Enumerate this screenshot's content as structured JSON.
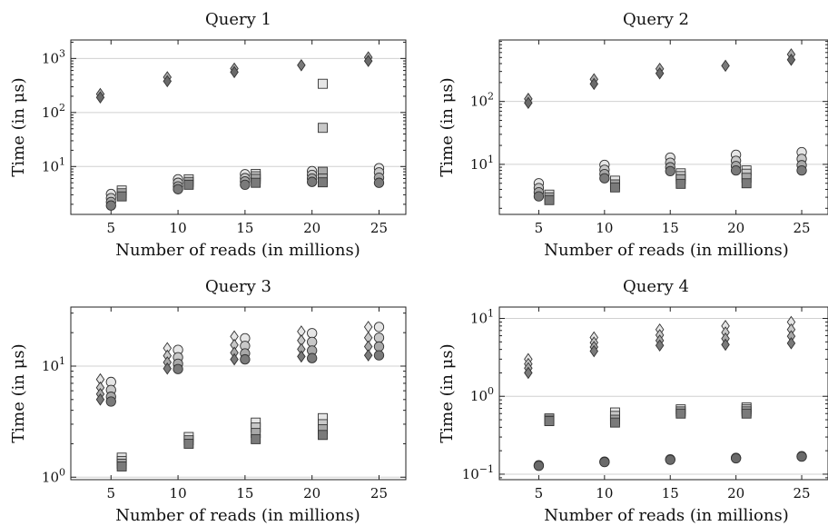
{
  "colors": {
    "shade_light": "#e6e6e6",
    "shade_mid_light": "#c8c8c8",
    "shade_mid": "#a8a8a8",
    "shade_dark": "#7a7a7a",
    "shade_darkest": "#6a6a6a",
    "grid": "#d0d0d0"
  },
  "chart_data": [
    {
      "type": "scatter",
      "title": "Query 1",
      "xlabel": "Number of reads (in millions)",
      "ylabel": "Time (in μs)",
      "yscale": "log",
      "xlim": [
        2,
        27
      ],
      "ylim": [
        1.3,
        2200
      ],
      "xticks": [
        5,
        10,
        15,
        20,
        25
      ],
      "yticks": [
        10,
        100,
        1000
      ],
      "ytick_labels": [
        [
          "10",
          "1"
        ],
        [
          "10",
          "2"
        ],
        [
          "10",
          "3"
        ]
      ],
      "series": [
        {
          "marker": "diamond",
          "x": [
            4.2,
            4.2,
            9.2,
            9.2,
            14.2,
            14.2,
            19.2,
            24.2,
            24.2
          ],
          "y": [
            220,
            190,
            450,
            380,
            650,
            560,
            750,
            1050,
            900
          ]
        },
        {
          "marker": "circle",
          "x": [
            5,
            5,
            5,
            5,
            10,
            10,
            10,
            10,
            15,
            15,
            15,
            15,
            20,
            20,
            20,
            20,
            25,
            25,
            25,
            25
          ],
          "y": [
            3.1,
            2.6,
            2.2,
            1.9,
            5.8,
            5.0,
            4.3,
            3.8,
            7.2,
            6.1,
            5.3,
            4.6,
            8.2,
            7.0,
            6.0,
            5.2,
            9.3,
            7.8,
            6.2,
            5.0
          ]
        },
        {
          "marker": "square",
          "x": [
            5.8,
            5.8,
            5.8,
            10.8,
            10.8,
            10.8,
            15.8,
            15.8,
            15.8,
            15.8,
            20.8,
            20.8,
            20.8,
            20.8,
            20.8
          ],
          "y": [
            3.6,
            3.2,
            2.8,
            5.8,
            5.2,
            4.6,
            7.3,
            6.6,
            5.9,
            5.0,
            340,
            52,
            8.0,
            6.0,
            5.1
          ]
        }
      ]
    },
    {
      "type": "scatter",
      "title": "Query 2",
      "xlabel": "Number of reads (in millions)",
      "ylabel": "Time (in μs)",
      "yscale": "log",
      "xlim": [
        2,
        27
      ],
      "ylim": [
        1.6,
        950
      ],
      "xticks": [
        5,
        10,
        15,
        20,
        25
      ],
      "yticks": [
        10,
        100
      ],
      "ytick_labels": [
        [
          "10",
          "1"
        ],
        [
          "10",
          "2"
        ]
      ],
      "series": [
        {
          "marker": "diamond",
          "x": [
            4.2,
            4.2,
            9.2,
            9.2,
            14.2,
            14.2,
            19.2,
            24.2,
            24.2
          ],
          "y": [
            110,
            95,
            225,
            190,
            330,
            280,
            370,
            560,
            460
          ]
        },
        {
          "marker": "circle",
          "x": [
            5,
            5,
            5,
            5,
            10,
            10,
            10,
            10,
            15,
            15,
            15,
            15,
            20,
            20,
            20,
            20,
            25,
            25,
            25,
            25
          ],
          "y": [
            5.0,
            4.2,
            3.6,
            3.1,
            9.8,
            8.2,
            7.0,
            6.0,
            12.8,
            10.6,
            9.0,
            7.8,
            14.2,
            11.4,
            9.4,
            8.0,
            15.6,
            12.2,
            9.7,
            8.0
          ]
        },
        {
          "marker": "square",
          "x": [
            5.8,
            5.8,
            5.8,
            10.8,
            10.8,
            10.8,
            15.8,
            15.8,
            15.8,
            15.8,
            20.8,
            20.8,
            20.8,
            20.8
          ],
          "y": [
            3.3,
            3.0,
            2.7,
            5.5,
            4.8,
            4.3,
            7.2,
            6.5,
            5.8,
            4.9,
            8.0,
            7.1,
            6.1,
            5.0
          ]
        }
      ]
    },
    {
      "type": "scatter",
      "title": "Query 3",
      "xlabel": "Number of reads (in millions)",
      "ylabel": "Time (in μs)",
      "yscale": "log",
      "xlim": [
        2,
        27
      ],
      "ylim": [
        0.95,
        34
      ],
      "xticks": [
        5,
        10,
        15,
        20,
        25
      ],
      "yticks": [
        1,
        10
      ],
      "ytick_labels": [
        [
          "10",
          "0"
        ],
        [
          "10",
          "1"
        ]
      ],
      "series": [
        {
          "marker": "diamond",
          "x": [
            4.2,
            4.2,
            4.2,
            4.2,
            9.2,
            9.2,
            9.2,
            9.2,
            14.2,
            14.2,
            14.2,
            14.2,
            19.2,
            19.2,
            19.2,
            19.2,
            24.2,
            24.2,
            24.2,
            24.2
          ],
          "y": [
            7.6,
            6.4,
            5.6,
            5.0,
            14.5,
            12.4,
            10.8,
            9.5,
            18.5,
            15.5,
            13.2,
            11.5,
            20.5,
            17.0,
            14.2,
            12.2,
            22.5,
            18.0,
            15.0,
            12.5
          ]
        },
        {
          "marker": "circle",
          "x": [
            5,
            5,
            5,
            5,
            10,
            10,
            10,
            10,
            15,
            15,
            15,
            15,
            20,
            20,
            20,
            20,
            25,
            25,
            25,
            25
          ],
          "y": [
            7.2,
            6.1,
            5.3,
            4.8,
            14.0,
            12.0,
            10.5,
            9.4,
            17.8,
            15.2,
            13.0,
            11.5,
            19.8,
            16.5,
            13.8,
            11.8,
            22.5,
            18.0,
            15.0,
            12.5
          ]
        },
        {
          "marker": "square",
          "x": [
            5.8,
            5.8,
            5.8,
            5.8,
            10.8,
            10.8,
            10.8,
            15.8,
            15.8,
            15.8,
            15.8,
            20.8,
            20.8,
            20.8,
            20.8
          ],
          "y": [
            1.5,
            1.4,
            1.32,
            1.25,
            2.3,
            2.15,
            2.0,
            3.1,
            2.8,
            2.5,
            2.2,
            3.4,
            3.0,
            2.7,
            2.4
          ]
        }
      ]
    },
    {
      "type": "scatter",
      "title": "Query 4",
      "xlabel": "Number of reads (in millions)",
      "ylabel": "Time (in μs)",
      "yscale": "log",
      "xlim": [
        2,
        27
      ],
      "ylim": [
        0.085,
        14
      ],
      "xticks": [
        5,
        10,
        15,
        20,
        25
      ],
      "yticks": [
        0.1,
        1,
        10
      ],
      "ytick_labels": [
        [
          "10",
          "−1"
        ],
        [
          "10",
          "0"
        ],
        [
          "10",
          "1"
        ]
      ],
      "series": [
        {
          "marker": "diamond",
          "x": [
            4.2,
            4.2,
            4.2,
            4.2,
            9.2,
            9.2,
            9.2,
            9.2,
            14.2,
            14.2,
            14.2,
            14.2,
            19.2,
            19.2,
            19.2,
            19.2,
            24.2,
            24.2,
            24.2,
            24.2
          ],
          "y": [
            3.0,
            2.6,
            2.3,
            2.0,
            5.7,
            4.9,
            4.3,
            3.8,
            7.2,
            6.1,
            5.2,
            4.5,
            8.0,
            6.6,
            5.5,
            4.6,
            9.0,
            7.2,
            5.9,
            4.8
          ]
        },
        {
          "marker": "circle",
          "x": [
            5,
            5,
            10,
            10,
            15,
            15,
            20,
            20,
            25,
            25
          ],
          "y": [
            0.13,
            0.128,
            0.145,
            0.143,
            0.155,
            0.153,
            0.162,
            0.16,
            0.17,
            0.168
          ]
        },
        {
          "marker": "square",
          "x": [
            5.8,
            5.8,
            5.8,
            10.8,
            10.8,
            10.8,
            10.8,
            15.8,
            15.8,
            15.8,
            20.8,
            20.8,
            20.8,
            20.8
          ],
          "y": [
            0.52,
            0.5,
            0.48,
            0.62,
            0.56,
            0.5,
            0.46,
            0.68,
            0.64,
            0.6,
            0.72,
            0.68,
            0.64,
            0.6
          ]
        }
      ]
    }
  ]
}
